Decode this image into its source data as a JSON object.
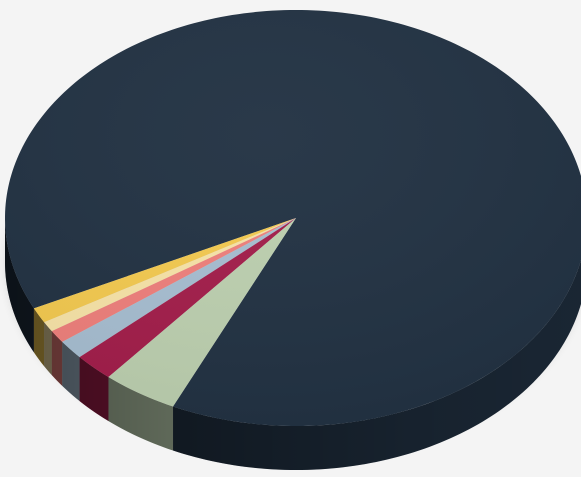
{
  "chart_data": {
    "type": "pie",
    "style": "3d",
    "title": "",
    "legend": "none",
    "start_angle_deg": 115,
    "direction": "counterclockwise",
    "slices": [
      {
        "value": 89.1,
        "color": "#213142"
      },
      {
        "value": 1.2,
        "color": "#f3c94f"
      },
      {
        "value": 0.8,
        "color": "#f7e3a7"
      },
      {
        "value": 1.0,
        "color": "#ee7f7b"
      },
      {
        "value": 1.5,
        "color": "#a6bdd0"
      },
      {
        "value": 2.2,
        "color": "#a21d4a"
      },
      {
        "value": 4.2,
        "color": "#bccfaf"
      }
    ]
  }
}
